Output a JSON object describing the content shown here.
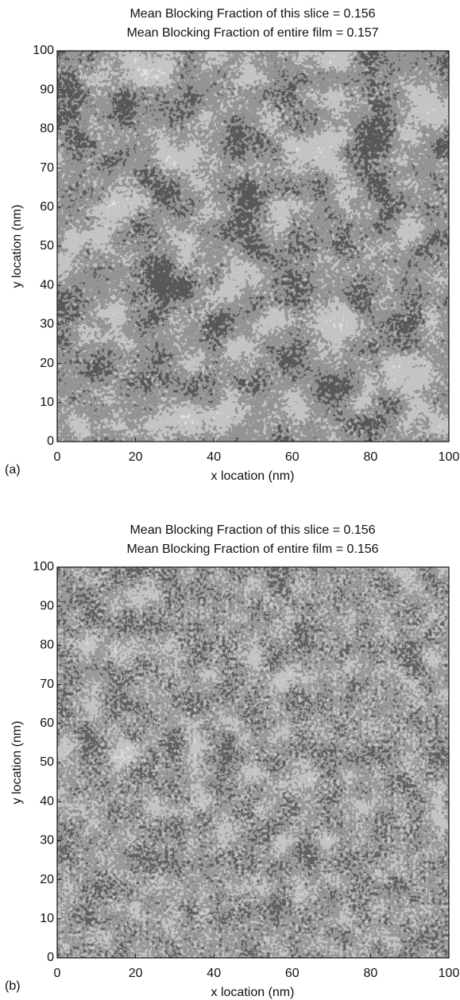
{
  "chart_data": [
    {
      "type": "image",
      "title": "Mean Blocking Fraction of this slice = 0.156",
      "subtitle": "Mean Blocking Fraction of entire film = 0.157",
      "panel_label": "(a)",
      "x_label": "x location (nm)",
      "y_label": "y location (nm)",
      "xlim": [
        0,
        100
      ],
      "ylim": [
        0,
        100
      ],
      "xticks": [
        0,
        20,
        40,
        60,
        80,
        100
      ],
      "yticks": [
        0,
        10,
        20,
        30,
        40,
        50,
        60,
        70,
        80,
        90,
        100
      ]
    },
    {
      "type": "image",
      "title": "Mean Blocking Fraction of this slice = 0.156",
      "subtitle": "Mean Blocking Fraction of entire film = 0.156",
      "panel_label": "(b)",
      "x_label": "x location (nm)",
      "y_label": "y location (nm)",
      "xlim": [
        0,
        100
      ],
      "ylim": [
        0,
        100
      ],
      "xticks": [
        0,
        20,
        40,
        60,
        80,
        100
      ],
      "yticks": [
        0,
        10,
        20,
        30,
        40,
        50,
        60,
        70,
        80,
        90,
        100
      ]
    }
  ]
}
